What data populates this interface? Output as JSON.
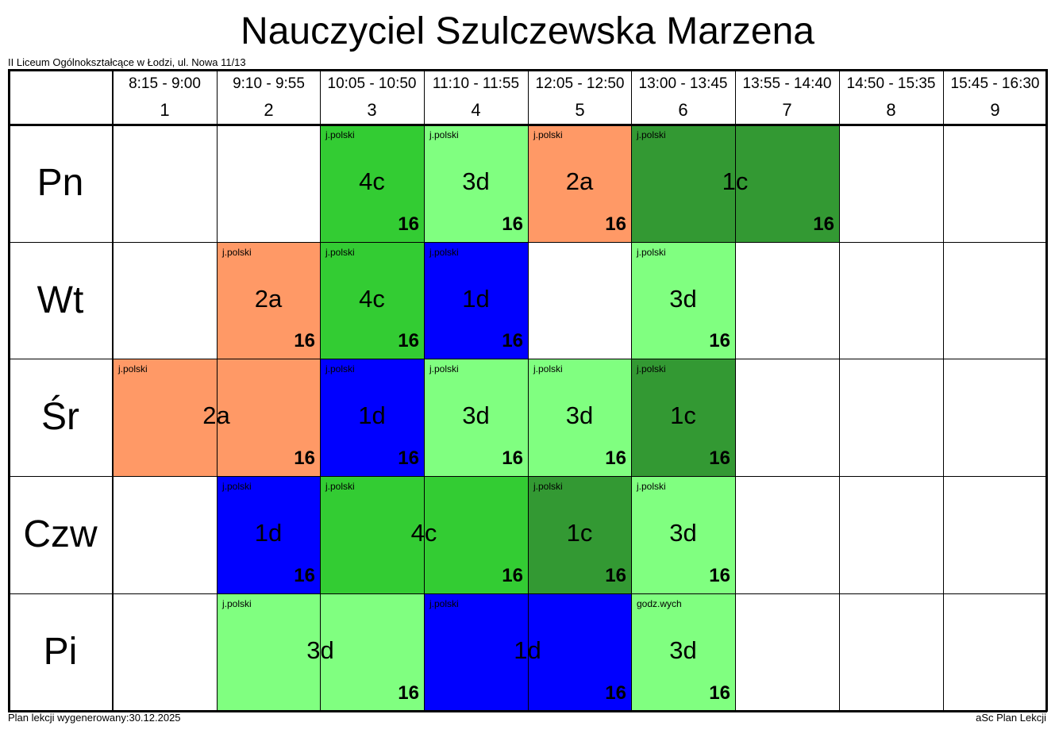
{
  "title": "Nauczyciel Szulczewska Marzena",
  "school": "II Liceum Ogólnokształcące w Łodzi, ul. Nowa 11/13",
  "footer": {
    "generated": "Plan lekcji wygenerowany:30.12.2025",
    "software": "aSc Plan Lekcji"
  },
  "colors": {
    "dark_green": "#339933",
    "green": "#33cc33",
    "light_green": "#80ff80",
    "salmon": "#ff9966",
    "blue": "#0000ff"
  },
  "periods": [
    {
      "time": "8:15 - 9:00",
      "num": "1"
    },
    {
      "time": "9:10 - 9:55",
      "num": "2"
    },
    {
      "time": "10:05 - 10:50",
      "num": "3"
    },
    {
      "time": "11:10 - 11:55",
      "num": "4"
    },
    {
      "time": "12:05 - 12:50",
      "num": "5"
    },
    {
      "time": "13:00 - 13:45",
      "num": "6"
    },
    {
      "time": "13:55 - 14:40",
      "num": "7"
    },
    {
      "time": "14:50 - 15:35",
      "num": "8"
    },
    {
      "time": "15:45 - 16:30",
      "num": "9"
    }
  ],
  "days": [
    "Pn",
    "Wt",
    "Śr",
    "Czw",
    "Pi"
  ],
  "lessons": [
    {
      "day": 0,
      "period": 3,
      "span": 1,
      "subject": "j.polski",
      "class": "4c",
      "room": "16",
      "color": "#33cc33"
    },
    {
      "day": 0,
      "period": 4,
      "span": 1,
      "subject": "j.polski",
      "class": "3d",
      "room": "16",
      "color": "#80ff80"
    },
    {
      "day": 0,
      "period": 5,
      "span": 1,
      "subject": "j.polski",
      "class": "2a",
      "room": "16",
      "color": "#ff9966"
    },
    {
      "day": 0,
      "period": 6,
      "span": 2,
      "subject": "j.polski",
      "class": "1c",
      "room": "16",
      "color": "#339933"
    },
    {
      "day": 1,
      "period": 2,
      "span": 1,
      "subject": "j.polski",
      "class": "2a",
      "room": "16",
      "color": "#ff9966"
    },
    {
      "day": 1,
      "period": 3,
      "span": 1,
      "subject": "j.polski",
      "class": "4c",
      "room": "16",
      "color": "#33cc33"
    },
    {
      "day": 1,
      "period": 4,
      "span": 1,
      "subject": "j.polski",
      "class": "1d",
      "room": "16",
      "color": "#0000ff"
    },
    {
      "day": 1,
      "period": 6,
      "span": 1,
      "subject": "j.polski",
      "class": "3d",
      "room": "16",
      "color": "#80ff80"
    },
    {
      "day": 2,
      "period": 1,
      "span": 2,
      "subject": "j.polski",
      "class": "2a",
      "room": "16",
      "color": "#ff9966"
    },
    {
      "day": 2,
      "period": 3,
      "span": 1,
      "subject": "j.polski",
      "class": "1d",
      "room": "16",
      "color": "#0000ff"
    },
    {
      "day": 2,
      "period": 4,
      "span": 1,
      "subject": "j.polski",
      "class": "3d",
      "room": "16",
      "color": "#80ff80"
    },
    {
      "day": 2,
      "period": 5,
      "span": 1,
      "subject": "j.polski",
      "class": "3d",
      "room": "16",
      "color": "#80ff80"
    },
    {
      "day": 2,
      "period": 6,
      "span": 1,
      "subject": "j.polski",
      "class": "1c",
      "room": "16",
      "color": "#339933"
    },
    {
      "day": 3,
      "period": 2,
      "span": 1,
      "subject": "j.polski",
      "class": "1d",
      "room": "16",
      "color": "#0000ff"
    },
    {
      "day": 3,
      "period": 3,
      "span": 2,
      "subject": "j.polski",
      "class": "4c",
      "room": "16",
      "color": "#33cc33"
    },
    {
      "day": 3,
      "period": 5,
      "span": 1,
      "subject": "j.polski",
      "class": "1c",
      "room": "16",
      "color": "#339933"
    },
    {
      "day": 3,
      "period": 6,
      "span": 1,
      "subject": "j.polski",
      "class": "3d",
      "room": "16",
      "color": "#80ff80"
    },
    {
      "day": 4,
      "period": 2,
      "span": 2,
      "subject": "j.polski",
      "class": "3d",
      "room": "16",
      "color": "#80ff80"
    },
    {
      "day": 4,
      "period": 4,
      "span": 2,
      "subject": "j.polski",
      "class": "1d",
      "room": "16",
      "color": "#0000ff"
    },
    {
      "day": 4,
      "period": 6,
      "span": 1,
      "subject": "godz.wych",
      "class": "3d",
      "room": "16",
      "color": "#80ff80"
    }
  ]
}
